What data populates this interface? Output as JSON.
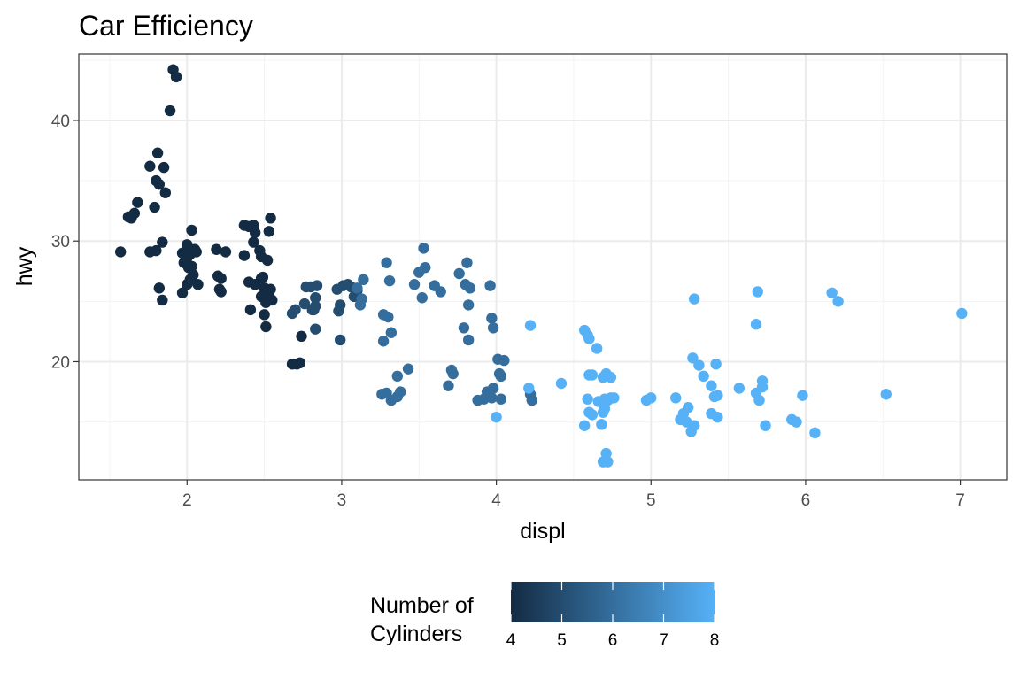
{
  "chart_data": {
    "type": "scatter",
    "title": "Car Efficiency",
    "xlabel": "displ",
    "ylabel": "hwy",
    "xlim": [
      1.3,
      7.3
    ],
    "ylim": [
      10.2,
      45.5
    ],
    "xticks": [
      2,
      3,
      4,
      5,
      6,
      7
    ],
    "yticks": [
      20,
      30,
      40
    ],
    "grid": true,
    "legend": {
      "position": "bottom",
      "title_lines": [
        "Number of",
        "Cylinders"
      ],
      "ticks": [
        4,
        5,
        6,
        7,
        8
      ],
      "range": [
        4,
        8
      ]
    },
    "colors": {
      "low": "#132b43",
      "high": "#56b1f7",
      "grid_major": "#ebebeb",
      "grid_minor": "#f3f3f3",
      "panel_border": "#333333",
      "tick_label": "#4d4d4d"
    },
    "points": [
      [
        1.57,
        29.1,
        4
      ],
      [
        1.62,
        32.0,
        4
      ],
      [
        1.66,
        32.3,
        4
      ],
      [
        1.68,
        33.2,
        4
      ],
      [
        1.64,
        31.9,
        4
      ],
      [
        1.76,
        36.2,
        4
      ],
      [
        1.8,
        35.0,
        4
      ],
      [
        1.82,
        34.7,
        4
      ],
      [
        1.85,
        36.1,
        4
      ],
      [
        1.81,
        37.3,
        4
      ],
      [
        1.86,
        34.0,
        4
      ],
      [
        1.79,
        32.8,
        4
      ],
      [
        1.76,
        29.1,
        4
      ],
      [
        1.8,
        29.2,
        4
      ],
      [
        1.84,
        29.9,
        4
      ],
      [
        1.82,
        26.1,
        4
      ],
      [
        1.84,
        25.1,
        4
      ],
      [
        1.89,
        40.8,
        4
      ],
      [
        1.91,
        44.2,
        4
      ],
      [
        1.93,
        43.6,
        4
      ],
      [
        1.97,
        29.0,
        4
      ],
      [
        2.0,
        29.7,
        4
      ],
      [
        2.02,
        28.9,
        4
      ],
      [
        1.98,
        28.2,
        4
      ],
      [
        2.01,
        27.8,
        4
      ],
      [
        2.04,
        27.2,
        4
      ],
      [
        2.0,
        26.4,
        4
      ],
      [
        1.97,
        25.7,
        4
      ],
      [
        2.02,
        26.8,
        4
      ],
      [
        2.05,
        29.3,
        4
      ],
      [
        2.03,
        30.9,
        4
      ],
      [
        2.06,
        29.1,
        4
      ],
      [
        2.0,
        28.6,
        4
      ],
      [
        2.07,
        26.4,
        4
      ],
      [
        2.03,
        27.9,
        4
      ],
      [
        2.19,
        29.3,
        4
      ],
      [
        2.2,
        27.1,
        4
      ],
      [
        2.22,
        26.9,
        4
      ],
      [
        2.21,
        26.0,
        4
      ],
      [
        2.22,
        25.8,
        4
      ],
      [
        2.25,
        29.1,
        4
      ],
      [
        2.37,
        31.3,
        4
      ],
      [
        2.4,
        31.2,
        4
      ],
      [
        2.43,
        31.3,
        4
      ],
      [
        2.44,
        30.7,
        4
      ],
      [
        2.43,
        29.9,
        4
      ],
      [
        2.37,
        28.8,
        4
      ],
      [
        2.4,
        26.6,
        4
      ],
      [
        2.44,
        26.4,
        4
      ],
      [
        2.48,
        26.9,
        4
      ],
      [
        2.41,
        24.3,
        4
      ],
      [
        2.47,
        29.2,
        4
      ],
      [
        2.48,
        28.7,
        4
      ],
      [
        2.52,
        28.4,
        4
      ],
      [
        2.49,
        27.0,
        4
      ],
      [
        2.5,
        26.1,
        4
      ],
      [
        2.48,
        25.4,
        4
      ],
      [
        2.51,
        24.9,
        4
      ],
      [
        2.53,
        25.6,
        4
      ],
      [
        2.54,
        26.0,
        4
      ],
      [
        2.5,
        23.9,
        4
      ],
      [
        2.51,
        22.9,
        4
      ],
      [
        2.53,
        30.8,
        4
      ],
      [
        2.54,
        31.9,
        4
      ],
      [
        2.55,
        25.1,
        4
      ],
      [
        2.68,
        19.8,
        4
      ],
      [
        2.71,
        19.8,
        4
      ],
      [
        2.73,
        19.9,
        4
      ],
      [
        2.74,
        22.1,
        4
      ],
      [
        2.68,
        24.0,
        5
      ],
      [
        2.7,
        24.3,
        5
      ],
      [
        2.76,
        24.8,
        5
      ],
      [
        2.77,
        26.2,
        5
      ],
      [
        2.8,
        26.2,
        5
      ],
      [
        2.81,
        24.3,
        5
      ],
      [
        2.83,
        25.3,
        5
      ],
      [
        2.84,
        26.3,
        5
      ],
      [
        2.83,
        22.7,
        5
      ],
      [
        2.82,
        24.3,
        5
      ],
      [
        2.83,
        24.6,
        5
      ],
      [
        2.97,
        26.0,
        5
      ],
      [
        2.98,
        24.2,
        5
      ],
      [
        2.99,
        21.8,
        5
      ],
      [
        2.99,
        24.7,
        5
      ],
      [
        3.01,
        26.3,
        5
      ],
      [
        3.04,
        26.4,
        5
      ],
      [
        3.06,
        26.2,
        5
      ],
      [
        3.08,
        25.4,
        5
      ],
      [
        3.1,
        25.9,
        5
      ],
      [
        3.1,
        26.1,
        6
      ],
      [
        3.13,
        25.2,
        6
      ],
      [
        3.14,
        26.8,
        6
      ],
      [
        3.12,
        24.7,
        6
      ],
      [
        3.27,
        21.7,
        6
      ],
      [
        3.27,
        23.9,
        6
      ],
      [
        3.29,
        28.2,
        6
      ],
      [
        3.3,
        23.7,
        6
      ],
      [
        3.31,
        26.7,
        6
      ],
      [
        3.32,
        22.4,
        6
      ],
      [
        3.26,
        17.3,
        6
      ],
      [
        3.29,
        17.4,
        6
      ],
      [
        3.32,
        16.8,
        6
      ],
      [
        3.36,
        18.8,
        6
      ],
      [
        3.36,
        17.1,
        6
      ],
      [
        3.38,
        17.5,
        6
      ],
      [
        3.43,
        19.4,
        6
      ],
      [
        3.47,
        26.4,
        6
      ],
      [
        3.5,
        27.4,
        6
      ],
      [
        3.53,
        29.4,
        6
      ],
      [
        3.54,
        27.8,
        6
      ],
      [
        3.52,
        25.3,
        6
      ],
      [
        3.6,
        26.3,
        6
      ],
      [
        3.64,
        25.8,
        6
      ],
      [
        3.69,
        18.0,
        6
      ],
      [
        3.71,
        19.3,
        6
      ],
      [
        3.72,
        19.0,
        6
      ],
      [
        3.76,
        27.3,
        6
      ],
      [
        3.79,
        22.8,
        6
      ],
      [
        3.8,
        26.4,
        6
      ],
      [
        3.81,
        28.2,
        6
      ],
      [
        3.82,
        21.8,
        6
      ],
      [
        3.82,
        24.7,
        6
      ],
      [
        3.83,
        26.1,
        6
      ],
      [
        3.88,
        16.8,
        6
      ],
      [
        3.92,
        16.9,
        6
      ],
      [
        3.94,
        17.5,
        6
      ],
      [
        3.95,
        17.2,
        6
      ],
      [
        3.97,
        17.0,
        6
      ],
      [
        3.98,
        17.8,
        6
      ],
      [
        3.96,
        26.3,
        6
      ],
      [
        3.97,
        23.6,
        6
      ],
      [
        3.98,
        22.8,
        6
      ],
      [
        4.01,
        20.2,
        6
      ],
      [
        4.02,
        19.0,
        6
      ],
      [
        4.03,
        18.8,
        6
      ],
      [
        4.05,
        20.1,
        6
      ],
      [
        4.03,
        16.9,
        6
      ],
      [
        4.22,
        17.3,
        6
      ],
      [
        4.23,
        16.8,
        6
      ],
      [
        4.0,
        15.4,
        8
      ],
      [
        4.21,
        17.8,
        8
      ],
      [
        4.22,
        23.0,
        8
      ],
      [
        4.42,
        18.2,
        8
      ],
      [
        4.57,
        22.6,
        8
      ],
      [
        4.59,
        22.2,
        8
      ],
      [
        4.6,
        21.9,
        8
      ],
      [
        4.65,
        21.1,
        8
      ],
      [
        4.57,
        14.7,
        8
      ],
      [
        4.59,
        16.9,
        8
      ],
      [
        4.6,
        15.8,
        8
      ],
      [
        4.62,
        15.6,
        8
      ],
      [
        4.6,
        18.9,
        8
      ],
      [
        4.62,
        18.9,
        8
      ],
      [
        4.66,
        16.7,
        8
      ],
      [
        4.69,
        18.7,
        8
      ],
      [
        4.7,
        16.9,
        8
      ],
      [
        4.71,
        19.0,
        8
      ],
      [
        4.74,
        18.7,
        8
      ],
      [
        4.68,
        14.8,
        8
      ],
      [
        4.69,
        15.8,
        8
      ],
      [
        4.7,
        16.1,
        8
      ],
      [
        4.72,
        16.8,
        8
      ],
      [
        4.74,
        17.0,
        8
      ],
      [
        4.71,
        12.4,
        8
      ],
      [
        4.69,
        11.7,
        8
      ],
      [
        4.72,
        11.7,
        8
      ],
      [
        4.76,
        17.0,
        8
      ],
      [
        4.73,
        16.9,
        8
      ],
      [
        4.97,
        16.8,
        8
      ],
      [
        5.0,
        17.0,
        8
      ],
      [
        5.16,
        17.0,
        8
      ],
      [
        5.19,
        15.2,
        8
      ],
      [
        5.21,
        15.7,
        8
      ],
      [
        5.23,
        15.0,
        8
      ],
      [
        5.24,
        16.2,
        8
      ],
      [
        5.26,
        14.2,
        8
      ],
      [
        5.28,
        14.7,
        8
      ],
      [
        5.27,
        20.3,
        8
      ],
      [
        5.31,
        19.7,
        8
      ],
      [
        5.34,
        18.8,
        8
      ],
      [
        5.28,
        25.2,
        8
      ],
      [
        5.39,
        18.0,
        8
      ],
      [
        5.39,
        15.7,
        8
      ],
      [
        5.41,
        17.1,
        8
      ],
      [
        5.43,
        17.2,
        8
      ],
      [
        5.43,
        15.4,
        8
      ],
      [
        5.42,
        19.8,
        8
      ],
      [
        5.57,
        17.8,
        8
      ],
      [
        5.68,
        23.1,
        8
      ],
      [
        5.69,
        25.8,
        8
      ],
      [
        5.68,
        17.4,
        8
      ],
      [
        5.7,
        16.8,
        8
      ],
      [
        5.72,
        17.9,
        8
      ],
      [
        5.72,
        18.4,
        8
      ],
      [
        5.74,
        14.7,
        8
      ],
      [
        5.91,
        15.2,
        8
      ],
      [
        5.94,
        15.0,
        8
      ],
      [
        5.98,
        17.2,
        8
      ],
      [
        6.06,
        14.1,
        8
      ],
      [
        6.17,
        25.7,
        8
      ],
      [
        6.21,
        25.0,
        8
      ],
      [
        6.52,
        17.3,
        8
      ],
      [
        7.01,
        24.0,
        8
      ]
    ]
  }
}
